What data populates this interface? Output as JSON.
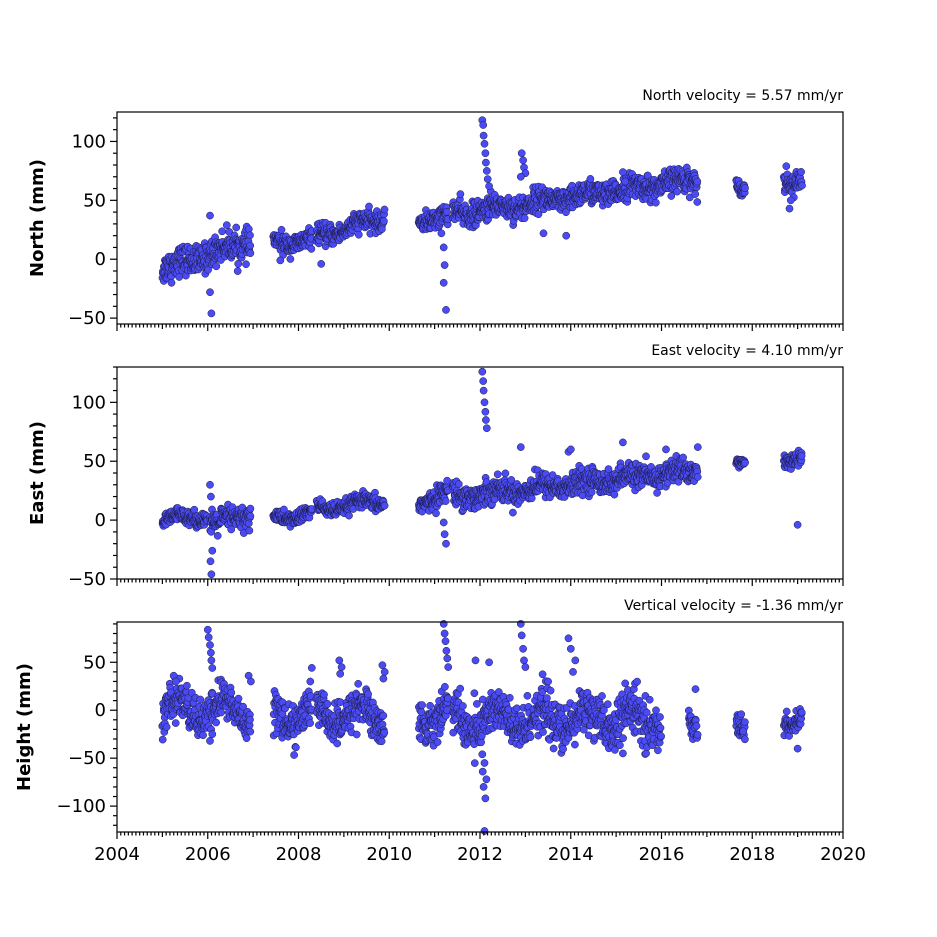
{
  "colors": {
    "marker": "#4b4bf5",
    "marker_edge": "#1a1a40",
    "axes": "#000000",
    "background": "#ffffff"
  },
  "chart_data": [
    {
      "type": "scatter",
      "title": "North velocity = 5.57 mm/yr",
      "ylabel": "North (mm)",
      "xlim": [
        2004,
        2020
      ],
      "ylim": [
        -55,
        125
      ],
      "yticks": [
        -50,
        0,
        50,
        100
      ],
      "ytick_labels": [
        "−50",
        "0",
        "50",
        "100"
      ],
      "xticks": [
        2004,
        2006,
        2008,
        2010,
        2012,
        2014,
        2016,
        2018,
        2020
      ],
      "series": [
        {
          "x": [],
          "y": []
        }
      ],
      "trend": {
        "velocity_mm_per_yr": 5.57,
        "base": 0,
        "start": 2005.0
      },
      "clusters": [
        {
          "x": [
            2005.0,
            2006.95
          ],
          "c": -8,
          "k": 12,
          "s": 6
        },
        {
          "x": [
            2007.45,
            2008.3
          ],
          "c": 14,
          "k": 2,
          "s": 4
        },
        {
          "x": [
            2008.4,
            2009.9
          ],
          "c": 19,
          "k": 11,
          "s": 4
        },
        {
          "x": [
            2010.65,
            2011.3
          ],
          "c": 34,
          "k": 4,
          "s": 4
        },
        {
          "x": [
            2011.4,
            2016.8
          ],
          "c": 38,
          "k": 5.57,
          "s": 5
        },
        {
          "x": [
            2017.65,
            2017.85
          ],
          "c": 63,
          "k": 0,
          "s": 3
        },
        {
          "x": [
            2018.7,
            2019.1
          ],
          "c": 67,
          "k": 0,
          "s": 4
        }
      ],
      "outliers": [
        {
          "x": 2006.05,
          "y": 37
        },
        {
          "x": 2006.08,
          "y": -46
        },
        {
          "x": 2006.05,
          "y": -28
        },
        {
          "x": 2005.2,
          "y": -20
        },
        {
          "x": 2008.5,
          "y": -4
        },
        {
          "x": 2007.6,
          "y": -1
        },
        {
          "x": 2011.25,
          "y": -43
        },
        {
          "x": 2011.2,
          "y": -20
        },
        {
          "x": 2011.22,
          "y": -5
        },
        {
          "x": 2011.2,
          "y": 10
        },
        {
          "x": 2011.15,
          "y": 22
        },
        {
          "x": 2012.05,
          "y": 118
        },
        {
          "x": 2012.07,
          "y": 114
        },
        {
          "x": 2012.08,
          "y": 105
        },
        {
          "x": 2012.1,
          "y": 98
        },
        {
          "x": 2012.12,
          "y": 90
        },
        {
          "x": 2012.13,
          "y": 82
        },
        {
          "x": 2012.15,
          "y": 75
        },
        {
          "x": 2012.17,
          "y": 68
        },
        {
          "x": 2012.2,
          "y": 62
        },
        {
          "x": 2012.92,
          "y": 90
        },
        {
          "x": 2012.95,
          "y": 84
        },
        {
          "x": 2012.97,
          "y": 78
        },
        {
          "x": 2013.0,
          "y": 73
        },
        {
          "x": 2012.9,
          "y": 70
        },
        {
          "x": 2015.15,
          "y": 74
        },
        {
          "x": 2015.2,
          "y": 66
        },
        {
          "x": 2013.4,
          "y": 22
        },
        {
          "x": 2013.9,
          "y": 20
        },
        {
          "x": 2018.75,
          "y": 79
        },
        {
          "x": 2018.85,
          "y": 50
        },
        {
          "x": 2018.82,
          "y": 43
        }
      ]
    },
    {
      "type": "scatter",
      "title": "East velocity = 4.10 mm/yr",
      "ylabel": "East (mm)",
      "xlim": [
        2004,
        2020
      ],
      "ylim": [
        -50,
        130
      ],
      "yticks": [
        -50,
        0,
        50,
        100
      ],
      "ytick_labels": [
        "−50",
        "0",
        "50",
        "100"
      ],
      "xticks": [
        2004,
        2006,
        2008,
        2010,
        2012,
        2014,
        2016,
        2018,
        2020
      ],
      "series": [
        {
          "x": [],
          "y": []
        }
      ],
      "trend": {
        "velocity_mm_per_yr": 4.1,
        "base": 0,
        "start": 2005.0
      },
      "clusters": [
        {
          "x": [
            2005.0,
            2006.0
          ],
          "c": 0,
          "k": 4,
          "s": 3
        },
        {
          "x": [
            2006.05,
            2006.95
          ],
          "c": -5,
          "k": 12,
          "s": 5
        },
        {
          "x": [
            2007.45,
            2008.3
          ],
          "c": 2,
          "k": 4,
          "s": 3
        },
        {
          "x": [
            2008.4,
            2009.9
          ],
          "c": 9,
          "k": 5,
          "s": 3
        },
        {
          "x": [
            2010.65,
            2011.3
          ],
          "c": 15,
          "k": 14,
          "s": 4
        },
        {
          "x": [
            2011.4,
            2016.8
          ],
          "c": 20,
          "k": 4.1,
          "s": 5
        },
        {
          "x": [
            2017.65,
            2017.85
          ],
          "c": 51,
          "k": 0,
          "s": 2
        },
        {
          "x": [
            2018.7,
            2019.1
          ],
          "c": 53,
          "k": 0,
          "s": 3
        }
      ],
      "outliers": [
        {
          "x": 2006.05,
          "y": 30
        },
        {
          "x": 2006.08,
          "y": -46
        },
        {
          "x": 2006.06,
          "y": -35
        },
        {
          "x": 2006.1,
          "y": -26
        },
        {
          "x": 2006.07,
          "y": 20
        },
        {
          "x": 2011.25,
          "y": -20
        },
        {
          "x": 2011.22,
          "y": -12
        },
        {
          "x": 2011.2,
          "y": -2
        },
        {
          "x": 2012.05,
          "y": 126
        },
        {
          "x": 2012.07,
          "y": 118
        },
        {
          "x": 2012.08,
          "y": 110
        },
        {
          "x": 2012.1,
          "y": 100
        },
        {
          "x": 2012.12,
          "y": 92
        },
        {
          "x": 2012.13,
          "y": 85
        },
        {
          "x": 2012.15,
          "y": 78
        },
        {
          "x": 2012.9,
          "y": 62
        },
        {
          "x": 2013.95,
          "y": 58
        },
        {
          "x": 2014.0,
          "y": 60
        },
        {
          "x": 2015.15,
          "y": 66
        },
        {
          "x": 2016.1,
          "y": 60
        },
        {
          "x": 2016.8,
          "y": 62
        },
        {
          "x": 2019.0,
          "y": -4
        }
      ]
    },
    {
      "type": "scatter",
      "title": "Vertical velocity = -1.36 mm/yr",
      "ylabel": "Height (mm)",
      "xlim": [
        2004,
        2020
      ],
      "ylim": [
        -127,
        92
      ],
      "yticks": [
        -100,
        -50,
        0,
        50
      ],
      "ytick_labels": [
        "−100",
        "−50",
        "0",
        "50"
      ],
      "xticks": [
        2004,
        2006,
        2008,
        2010,
        2012,
        2014,
        2016,
        2018,
        2020
      ],
      "xtick_labels": [
        "2004",
        "2006",
        "2008",
        "2010",
        "2012",
        "2014",
        "2016",
        "2018",
        "2020"
      ],
      "series": [
        {
          "x": [],
          "y": []
        }
      ],
      "trend": {
        "velocity_mm_per_yr": -1.36,
        "base": 0,
        "start": 2005.0
      },
      "clusters": [
        {
          "x": [
            2005.0,
            2006.95
          ],
          "c": 0,
          "k": 0,
          "s": 10
        },
        {
          "x": [
            2007.45,
            2008.3
          ],
          "c": -5,
          "k": 0,
          "s": 10
        },
        {
          "x": [
            2008.4,
            2009.9
          ],
          "c": -5,
          "k": 0,
          "s": 10
        },
        {
          "x": [
            2010.65,
            2011.3
          ],
          "c": -5,
          "k": 0,
          "s": 10
        },
        {
          "x": [
            2011.4,
            2016.0
          ],
          "c": -10,
          "k": 0,
          "s": 12
        },
        {
          "x": [
            2016.6,
            2016.8
          ],
          "c": -8,
          "k": 0,
          "s": 7
        },
        {
          "x": [
            2017.65,
            2017.85
          ],
          "c": -8,
          "k": 0,
          "s": 6
        },
        {
          "x": [
            2018.7,
            2019.1
          ],
          "c": -5,
          "k": 0,
          "s": 5
        }
      ],
      "outliers": [
        {
          "x": 2006.0,
          "y": 84
        },
        {
          "x": 2006.02,
          "y": 76
        },
        {
          "x": 2006.05,
          "y": 68
        },
        {
          "x": 2006.07,
          "y": 60
        },
        {
          "x": 2006.08,
          "y": 52
        },
        {
          "x": 2006.1,
          "y": 44
        },
        {
          "x": 2006.05,
          "y": -32
        },
        {
          "x": 2006.1,
          "y": -25
        },
        {
          "x": 2005.25,
          "y": 36
        },
        {
          "x": 2005.3,
          "y": 30
        },
        {
          "x": 2006.9,
          "y": 36
        },
        {
          "x": 2006.95,
          "y": 30
        },
        {
          "x": 2008.9,
          "y": 52
        },
        {
          "x": 2008.95,
          "y": 45
        },
        {
          "x": 2008.92,
          "y": 38
        },
        {
          "x": 2009.85,
          "y": 47
        },
        {
          "x": 2009.9,
          "y": 40
        },
        {
          "x": 2009.87,
          "y": 33
        },
        {
          "x": 2011.2,
          "y": 90
        },
        {
          "x": 2011.22,
          "y": 80
        },
        {
          "x": 2011.24,
          "y": 72
        },
        {
          "x": 2011.26,
          "y": 62
        },
        {
          "x": 2011.28,
          "y": 54
        },
        {
          "x": 2011.3,
          "y": 45
        },
        {
          "x": 2012.1,
          "y": -126
        },
        {
          "x": 2012.12,
          "y": -92
        },
        {
          "x": 2012.08,
          "y": -80
        },
        {
          "x": 2012.14,
          "y": -72
        },
        {
          "x": 2012.06,
          "y": -64
        },
        {
          "x": 2012.1,
          "y": -55
        },
        {
          "x": 2012.05,
          "y": -46
        },
        {
          "x": 2012.2,
          "y": 50
        },
        {
          "x": 2011.9,
          "y": 52
        },
        {
          "x": 2012.9,
          "y": 90
        },
        {
          "x": 2012.92,
          "y": 78
        },
        {
          "x": 2012.95,
          "y": 64
        },
        {
          "x": 2012.97,
          "y": 52
        },
        {
          "x": 2013.0,
          "y": 45
        },
        {
          "x": 2013.95,
          "y": 75
        },
        {
          "x": 2014.0,
          "y": 64
        },
        {
          "x": 2014.1,
          "y": 52
        },
        {
          "x": 2013.5,
          "y": 30
        },
        {
          "x": 2014.05,
          "y": 40
        },
        {
          "x": 2015.15,
          "y": -45
        },
        {
          "x": 2015.2,
          "y": 28
        },
        {
          "x": 2016.75,
          "y": 22
        },
        {
          "x": 2017.8,
          "y": -22
        },
        {
          "x": 2019.0,
          "y": -40
        }
      ]
    }
  ]
}
